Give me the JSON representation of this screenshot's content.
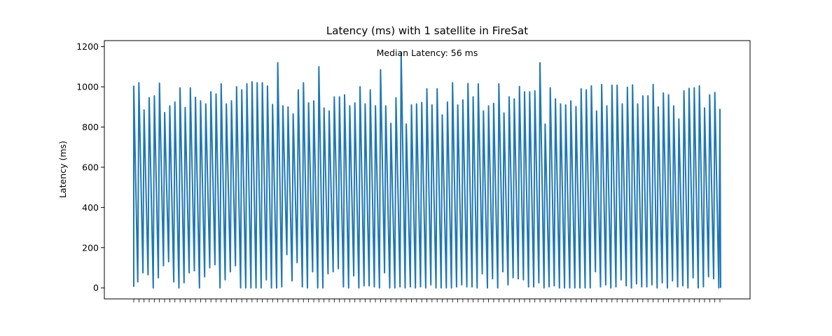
{
  "chart_data": {
    "type": "line",
    "title": "Latency (ms) with 1 satellite in FireSat",
    "xlabel": "",
    "ylabel": "Latency (ms)",
    "annotation": "Median Latency: 56 ms",
    "ylim": [
      -55,
      1230
    ],
    "yticks": [
      0,
      200,
      400,
      600,
      800,
      1000,
      1200
    ],
    "grid": false,
    "color": "#1f77b4",
    "x_tick_labels_note": "dense overlapping timestamp labels, unreadable",
    "series": [
      {
        "peaks": [
          1003,
          1020,
          885,
          945,
          955,
          1018,
          872,
          905,
          925,
          995,
          897,
          995,
          948,
          930,
          915,
          975,
          965,
          1015,
          915,
          930,
          1000,
          985,
          1015,
          1025,
          1020,
          1020,
          1004,
          912,
          1120,
          905,
          900,
          865,
          985,
          1020,
          920,
          930,
          1100,
          895,
          880,
          950,
          950,
          960,
          905,
          920,
          1000,
          915,
          985,
          905,
          1085,
          905,
          818,
          945,
          1170,
          815,
          910,
          915,
          922,
          990,
          910,
          990,
          860,
          925,
          1020,
          910,
          935,
          1017,
          950,
          1015,
          880,
          905,
          918,
          1015,
          870,
          950,
          940,
          1002,
          975,
          975,
          980,
          1120,
          815,
          995,
          940,
          915,
          910,
          930,
          902,
          990,
          985,
          1005,
          880,
          1012,
          905,
          1008,
          1008,
          915,
          998,
          1010,
          915,
          955,
          955,
          1012,
          900,
          970,
          960,
          905,
          840,
          980,
          992,
          995,
          1005,
          895,
          960,
          972,
          888
        ],
        "valleys": [
          5,
          30,
          75,
          65,
          0,
          50,
          110,
          130,
          30,
          0,
          25,
          75,
          85,
          0,
          55,
          100,
          115,
          0,
          40,
          80,
          110,
          0,
          0,
          0,
          0,
          0,
          40,
          0,
          0,
          5,
          165,
          35,
          125,
          5,
          0,
          80,
          0,
          0,
          70,
          80,
          95,
          5,
          0,
          60,
          0,
          10,
          10,
          5,
          0,
          75,
          0,
          0,
          5,
          0,
          5,
          0,
          5,
          0,
          15,
          0,
          0,
          0,
          0,
          5,
          15,
          5,
          5,
          0,
          70,
          0,
          45,
          0,
          80,
          15,
          50,
          45,
          40,
          5,
          5,
          25,
          0,
          5,
          10,
          0,
          0,
          0,
          0,
          0,
          0,
          0,
          80,
          5,
          15,
          0,
          5,
          40,
          10,
          0,
          20,
          5,
          5,
          15,
          0,
          25,
          0,
          35,
          5,
          10,
          0,
          50,
          0,
          5,
          55,
          45,
          0
        ]
      }
    ]
  }
}
